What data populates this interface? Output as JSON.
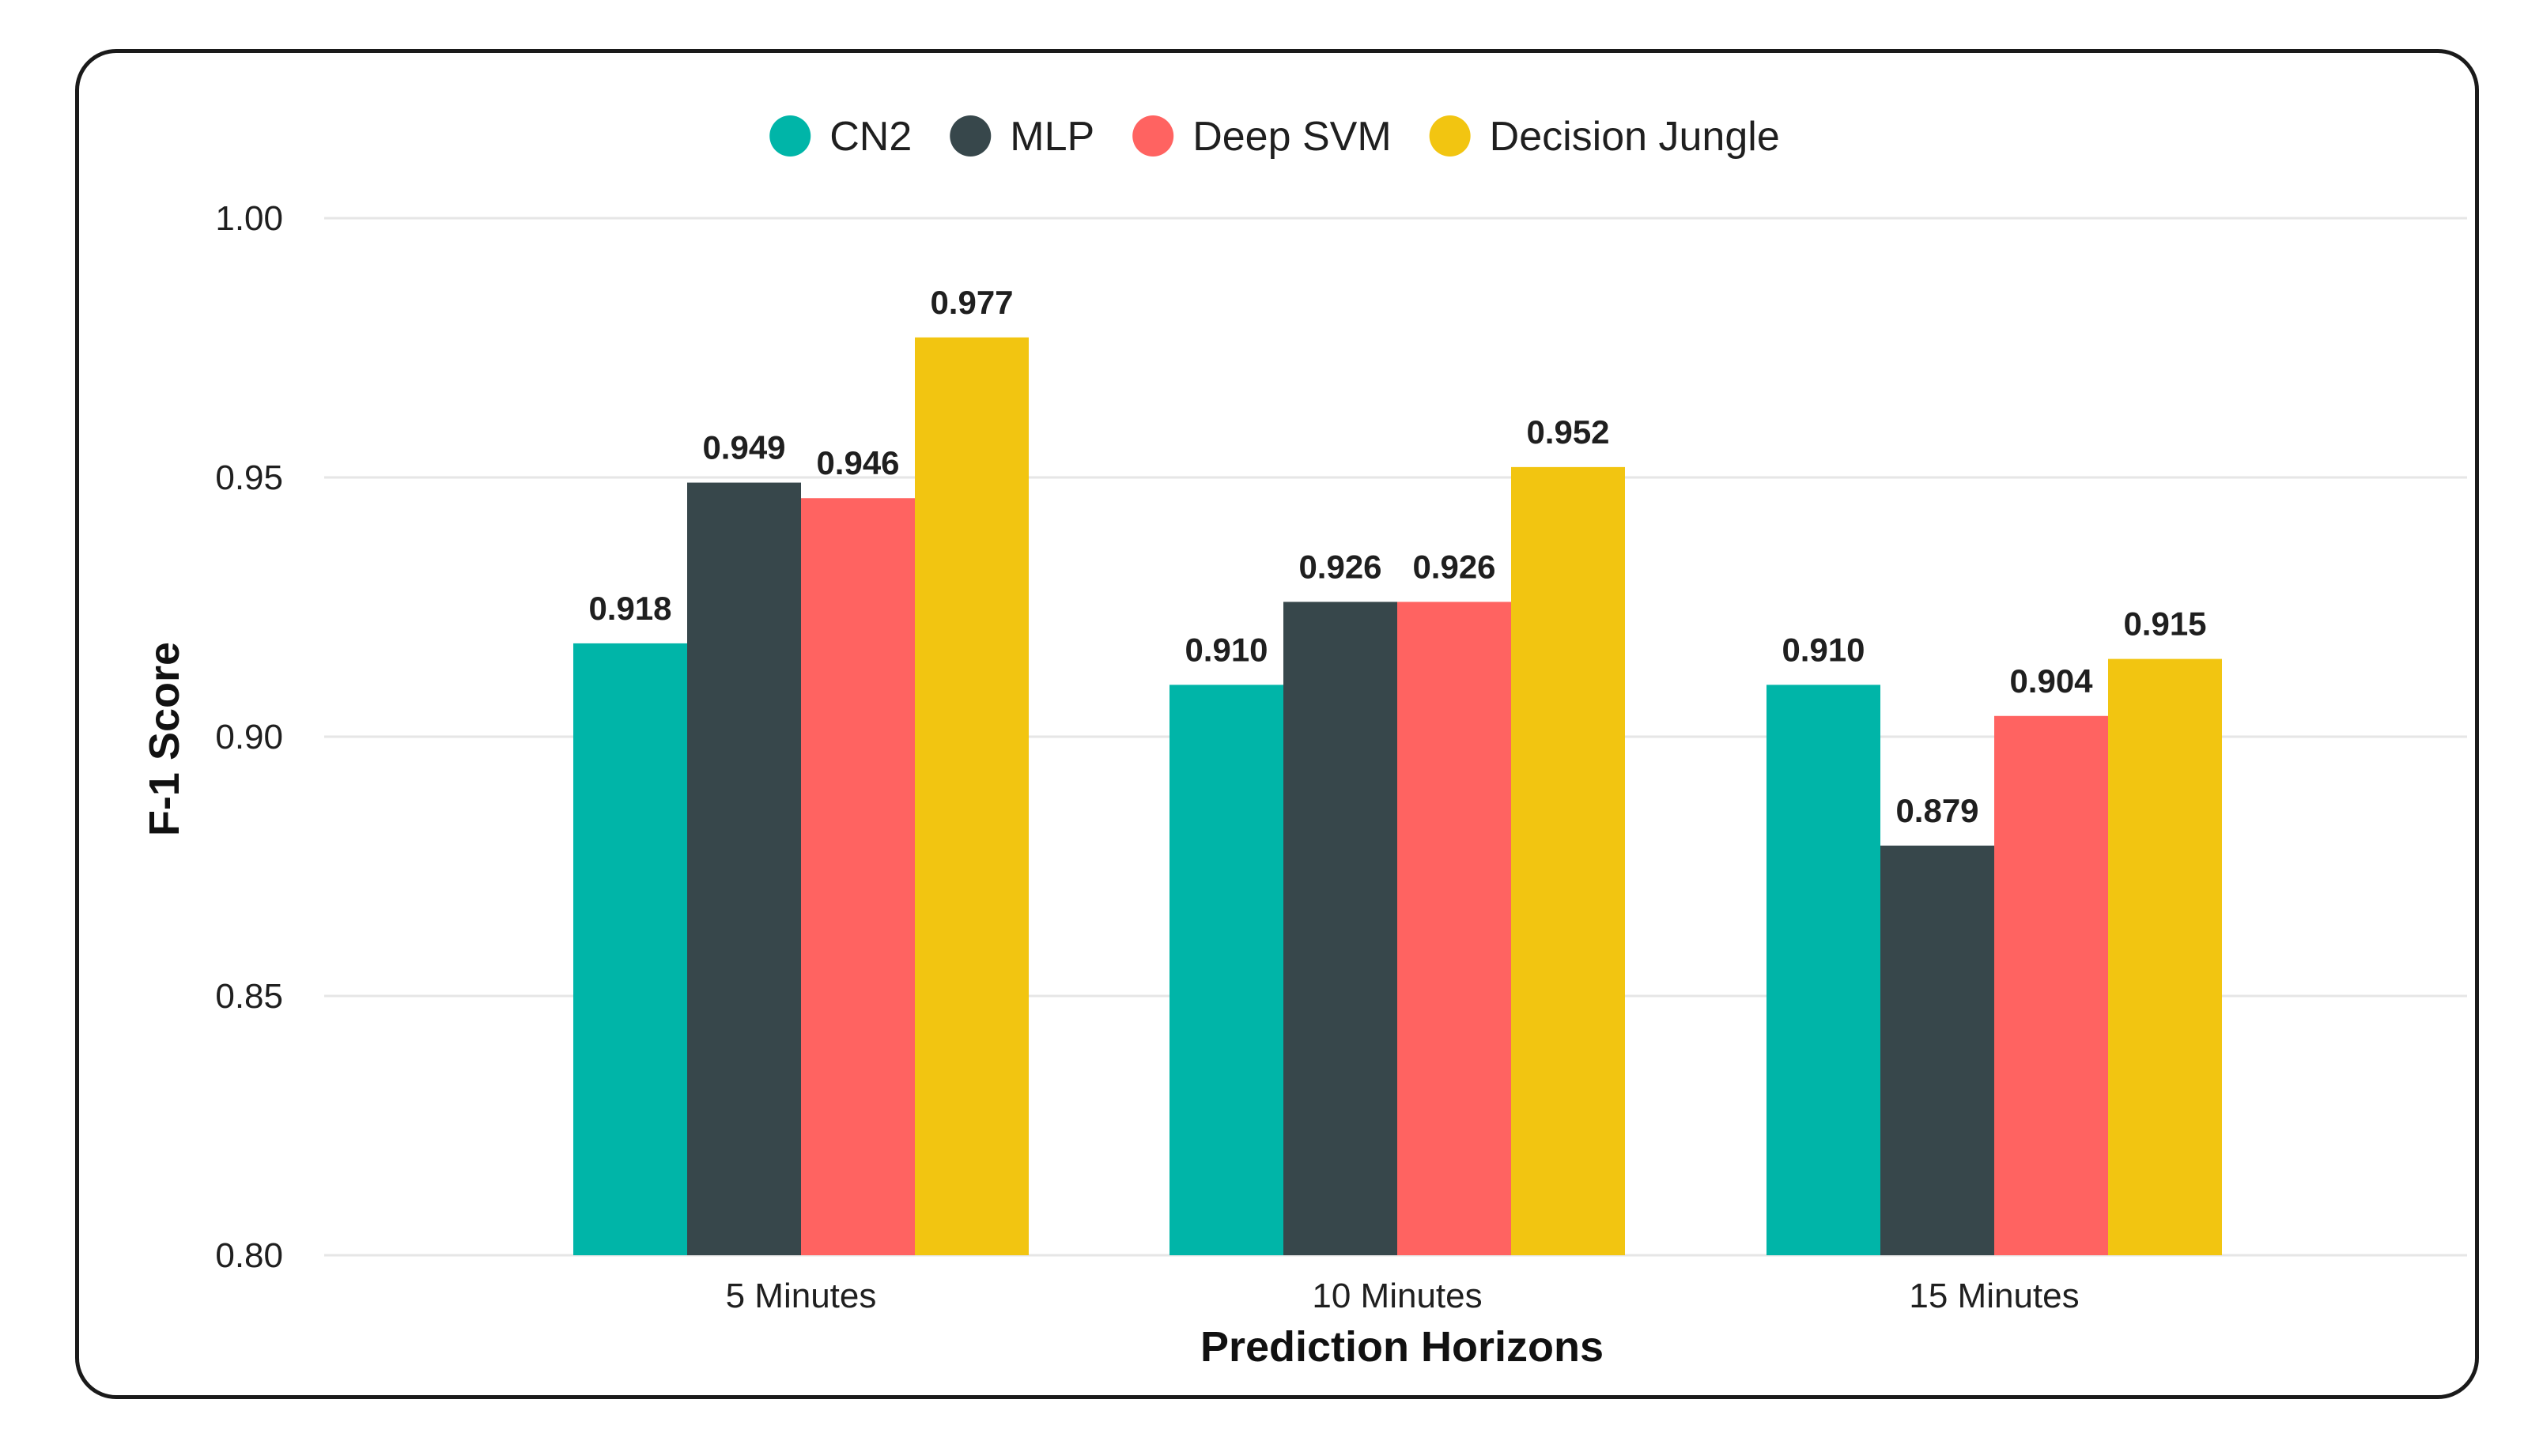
{
  "chart_data": {
    "type": "bar",
    "title": "",
    "xlabel": "Prediction Horizons",
    "ylabel": "F-1 Score",
    "ylim": [
      0.8,
      1.0
    ],
    "yticks": [
      "0.80",
      "0.85",
      "0.90",
      "0.95",
      "1.00"
    ],
    "grid": true,
    "legend_position": "top-center",
    "categories": [
      "5 Minutes",
      "10 Minutes",
      "15 Minutes"
    ],
    "series": [
      {
        "name": "CN2",
        "color": "#00b5a8",
        "values": [
          0.918,
          0.91,
          0.91
        ],
        "labels": [
          "0.918",
          "0.910",
          "0.910"
        ]
      },
      {
        "name": "MLP",
        "color": "#37474b",
        "values": [
          0.949,
          0.926,
          0.879
        ],
        "labels": [
          "0.949",
          "0.926",
          "0.879"
        ]
      },
      {
        "name": "Deep SVM",
        "color": "#ff6361",
        "values": [
          0.946,
          0.926,
          0.904
        ],
        "labels": [
          "0.946",
          "0.926",
          "0.904"
        ]
      },
      {
        "name": "Decision Jungle",
        "color": "#f2c511",
        "values": [
          0.977,
          0.952,
          0.915
        ],
        "labels": [
          "0.977",
          "0.952",
          "0.915"
        ]
      }
    ]
  }
}
